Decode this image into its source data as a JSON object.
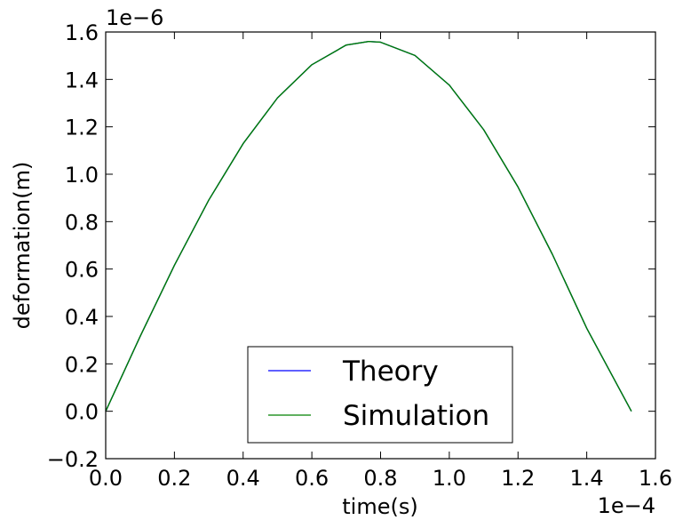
{
  "chart_data": {
    "type": "line",
    "xlabel": "time(s)",
    "ylabel": "deformation(m)",
    "x_offset_label": "1e−4",
    "y_offset_label": "1e−6",
    "xlim": [
      0.0,
      1.6
    ],
    "ylim": [
      -0.2,
      1.6
    ],
    "x_ticks": [
      0.0,
      0.2,
      0.4,
      0.6,
      0.8,
      1.0,
      1.2,
      1.4,
      1.6
    ],
    "x_tick_labels": [
      "0.0",
      "0.2",
      "0.4",
      "0.6",
      "0.8",
      "1.0",
      "1.2",
      "1.4",
      "1.6"
    ],
    "y_ticks": [
      -0.2,
      0.0,
      0.2,
      0.4,
      0.6,
      0.8,
      1.0,
      1.2,
      1.4,
      1.6
    ],
    "y_tick_labels": [
      "−0.2",
      "0.0",
      "0.2",
      "0.4",
      "0.6",
      "0.8",
      "1.0",
      "1.2",
      "1.4",
      "1.6"
    ],
    "grid": false,
    "legend_position": "bottom-center",
    "series": [
      {
        "name": "Theory",
        "color": "#0000ff",
        "x": [
          0.0,
          0.1,
          0.2,
          0.3,
          0.4,
          0.5,
          0.6,
          0.7,
          0.765,
          0.8,
          0.9,
          1.0,
          1.1,
          1.2,
          1.3,
          1.4,
          1.53
        ],
        "y": [
          0.0,
          0.315,
          0.616,
          0.891,
          1.129,
          1.322,
          1.462,
          1.545,
          1.56,
          1.557,
          1.501,
          1.376,
          1.188,
          0.946,
          0.662,
          0.35,
          0.0
        ]
      },
      {
        "name": "Simulation",
        "color": "#008000",
        "x": [
          0.0,
          0.1,
          0.2,
          0.3,
          0.4,
          0.5,
          0.6,
          0.7,
          0.765,
          0.8,
          0.9,
          1.0,
          1.1,
          1.2,
          1.3,
          1.4,
          1.53
        ],
        "y": [
          0.0,
          0.315,
          0.616,
          0.891,
          1.129,
          1.322,
          1.462,
          1.545,
          1.56,
          1.557,
          1.501,
          1.376,
          1.188,
          0.946,
          0.662,
          0.35,
          0.0
        ]
      }
    ]
  }
}
